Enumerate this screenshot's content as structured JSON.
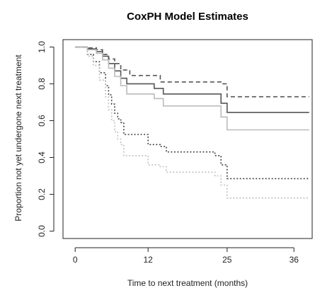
{
  "chart_data": {
    "type": "line",
    "step": true,
    "title": "CoxPH Model Estimates",
    "xlabel": "Time to next treatment (months)",
    "ylabel": "Proportion not yet undergone next treatment",
    "xlim": [
      -2,
      39
    ],
    "ylim": [
      -0.04,
      1.04
    ],
    "xticks": [
      0,
      12,
      25,
      36
    ],
    "yticks": [
      0.0,
      0.2,
      0.4,
      0.6,
      0.8,
      1.0
    ],
    "ytick_labels": [
      "0.0",
      "0.2",
      "0.4",
      "0.6",
      "0.8",
      "1.0"
    ],
    "series": [
      {
        "style": "dashed",
        "color": "#555555",
        "x": [
          0,
          2,
          3.5,
          4.5,
          5.5,
          6.5,
          7.5,
          9,
          14,
          24,
          25,
          38.5
        ],
        "y": [
          1.0,
          0.995,
          0.985,
          0.96,
          0.935,
          0.91,
          0.875,
          0.845,
          0.81,
          0.8,
          0.73,
          0.73
        ]
      },
      {
        "style": "solid",
        "color": "#555555",
        "x": [
          0,
          2,
          3.5,
          4.5,
          5.5,
          6.5,
          7.5,
          8.5,
          13,
          14.5,
          24,
          25,
          38.5
        ],
        "y": [
          1.0,
          0.99,
          0.975,
          0.95,
          0.91,
          0.87,
          0.83,
          0.8,
          0.775,
          0.745,
          0.695,
          0.645,
          0.645
        ]
      },
      {
        "style": "solid",
        "color": "#bbbbbb",
        "x": [
          0,
          2,
          3.5,
          4.5,
          5.5,
          6.5,
          7.5,
          8.5,
          13,
          14.5,
          24,
          25,
          38.5
        ],
        "y": [
          1.0,
          0.985,
          0.965,
          0.93,
          0.885,
          0.84,
          0.79,
          0.745,
          0.72,
          0.68,
          0.62,
          0.55,
          0.55
        ]
      },
      {
        "style": "dotted",
        "color": "#444444",
        "x": [
          0,
          2,
          3,
          4,
          5,
          5.5,
          6,
          6.5,
          7,
          7.5,
          8,
          9,
          12,
          14,
          15,
          23,
          24,
          25,
          38.5
        ],
        "y": [
          1.0,
          0.96,
          0.92,
          0.86,
          0.79,
          0.74,
          0.69,
          0.64,
          0.61,
          0.59,
          0.525,
          0.525,
          0.47,
          0.46,
          0.43,
          0.41,
          0.36,
          0.285,
          0.285
        ]
      },
      {
        "style": "dotted",
        "color": "#c0c0c0",
        "x": [
          0,
          2,
          3,
          4,
          5,
          5.5,
          6,
          6.5,
          7,
          7.5,
          8,
          9,
          12,
          14,
          15,
          23,
          24,
          25,
          38.5
        ],
        "y": [
          1.0,
          0.95,
          0.9,
          0.82,
          0.73,
          0.66,
          0.6,
          0.54,
          0.5,
          0.47,
          0.41,
          0.41,
          0.36,
          0.35,
          0.32,
          0.3,
          0.25,
          0.18,
          0.18
        ]
      }
    ]
  }
}
